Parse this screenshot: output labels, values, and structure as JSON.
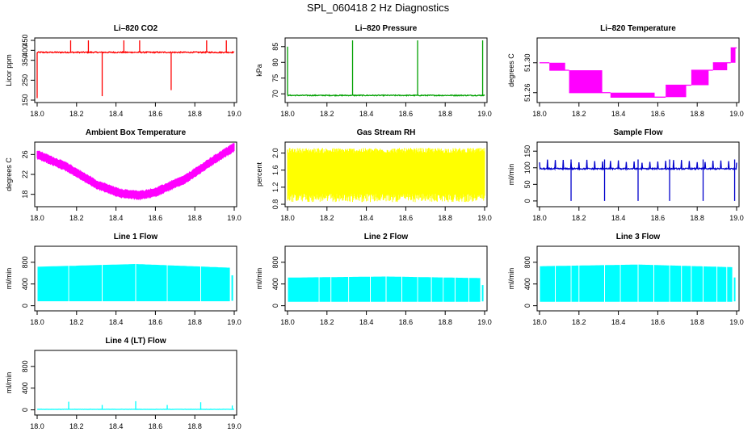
{
  "figure_title": "SPL_060418  2 Hz Diagnostics",
  "chart_data": [
    {
      "id": "co2",
      "type": "line",
      "title": "Li–820 CO2",
      "ylabel": "Licor ppm",
      "color": "#ff0000",
      "xlim": [
        18,
        19
      ],
      "ylim": [
        150,
        450
      ],
      "yticks": [
        150,
        250,
        350,
        400,
        450
      ],
      "xticks": [
        "18.0",
        "18.2",
        "18.4",
        "18.6",
        "18.8",
        "19.0"
      ],
      "series": [
        {
          "name": "CO2",
          "baseline": 390,
          "noise": 6,
          "spikes": [
            {
              "x": 18.0,
              "v": 160
            },
            {
              "x": 18.17,
              "v": 450
            },
            {
              "x": 18.26,
              "v": 450
            },
            {
              "x": 18.33,
              "v": 170
            },
            {
              "x": 18.44,
              "v": 450
            },
            {
              "x": 18.52,
              "v": 450
            },
            {
              "x": 18.68,
              "v": 200
            },
            {
              "x": 18.86,
              "v": 450
            },
            {
              "x": 18.96,
              "v": 450
            }
          ]
        }
      ]
    },
    {
      "id": "pressure",
      "type": "line",
      "title": "Li–820 Pressure",
      "ylabel": "kPa",
      "color": "#00a000",
      "xlim": [
        18,
        19
      ],
      "ylim": [
        68,
        87
      ],
      "yticks": [
        70,
        75,
        80,
        85
      ],
      "xticks": [
        "18.0",
        "18.2",
        "18.4",
        "18.6",
        "18.8",
        "19.0"
      ],
      "series": [
        {
          "name": "Pressure",
          "baseline": 69.5,
          "noise": 0.3,
          "spikes": [
            {
              "x": 18.0,
              "v": 85
            },
            {
              "x": 18.33,
              "v": 87
            },
            {
              "x": 18.66,
              "v": 87
            },
            {
              "x": 18.99,
              "v": 87
            }
          ]
        }
      ]
    },
    {
      "id": "temp",
      "type": "line",
      "title": "Li–820 Temperature",
      "ylabel": "degrees C",
      "color": "#ff00ff",
      "xlim": [
        18,
        19
      ],
      "ylim": [
        51.25,
        51.33
      ],
      "yticks": [
        "51.26",
        "51.30"
      ],
      "xticks": [
        "18.0",
        "18.2",
        "18.4",
        "18.6",
        "18.8",
        "19.0"
      ],
      "series": [
        {
          "name": "Temperature",
          "steps": [
            [
              18.0,
              51.3
            ],
            [
              18.05,
              51.29
            ],
            [
              18.15,
              51.26
            ],
            [
              18.36,
              51.254
            ],
            [
              18.64,
              51.27
            ],
            [
              18.77,
              51.29
            ],
            [
              18.88,
              51.3
            ],
            [
              18.97,
              51.32
            ]
          ]
        }
      ]
    },
    {
      "id": "ambient",
      "type": "line",
      "title": "Ambient Box Temperature",
      "ylabel": "degrees C",
      "color": "#ff00ff",
      "xlim": [
        18,
        19
      ],
      "ylim": [
        16,
        28
      ],
      "yticks": [
        18,
        22,
        26
      ],
      "xticks": [
        "18.0",
        "18.2",
        "18.4",
        "18.6",
        "18.8",
        "19.0"
      ],
      "series": [
        {
          "name": "Ambient",
          "knots": [
            [
              18.0,
              26
            ],
            [
              18.15,
              23.5
            ],
            [
              18.3,
              20
            ],
            [
              18.42,
              18.2
            ],
            [
              18.52,
              17.8
            ],
            [
              18.6,
              18.4
            ],
            [
              18.75,
              21
            ],
            [
              18.9,
              25
            ],
            [
              19.0,
              27.5
            ]
          ],
          "noise": 0.6
        }
      ]
    },
    {
      "id": "rh",
      "type": "line",
      "title": "Gas Stream RH",
      "ylabel": "percent",
      "color": "#ffff00",
      "xlim": [
        18,
        19
      ],
      "ylim": [
        0.8,
        2.2
      ],
      "yticks": [
        "0.8",
        "1.2",
        "1.6",
        "2.0"
      ],
      "xticks": [
        "18.0",
        "18.2",
        "18.4",
        "18.6",
        "18.8",
        "19.0"
      ],
      "series": [
        {
          "name": "RH",
          "band": [
            1.05,
            2.0
          ],
          "outliers": 0.85
        }
      ]
    },
    {
      "id": "sflow",
      "type": "line",
      "title": "Sample Flow",
      "ylabel": "ml/min",
      "color": "#0000cc",
      "xlim": [
        18,
        19
      ],
      "ylim": [
        -10,
        170
      ],
      "yticks": [
        0,
        50,
        100,
        150
      ],
      "xticks": [
        "18.0",
        "18.2",
        "18.4",
        "18.6",
        "18.8",
        "19.0"
      ],
      "series": [
        {
          "name": "Sample Flow",
          "baseline": 97,
          "noise": 4,
          "dips": [
            18.16,
            18.33,
            18.5,
            18.66,
            18.83,
            18.99
          ],
          "dip_value": 0,
          "spike_value": 125
        }
      ]
    },
    {
      "id": "line1",
      "type": "area",
      "title": "Line 1 Flow",
      "ylabel": "ml/min",
      "color": "#00ffff",
      "xlim": [
        18,
        19
      ],
      "ylim": [
        -50,
        1050
      ],
      "yticks": [
        0,
        400,
        800
      ],
      "xticks": [
        "18.0",
        "18.2",
        "18.4",
        "18.6",
        "18.8",
        "19.0"
      ],
      "series": [
        {
          "name": "Line 1",
          "top": [
            [
              18.0,
              710
            ],
            [
              18.5,
              760
            ],
            [
              19.0,
              690
            ]
          ],
          "bottom": 90,
          "gaps": [
            18.16,
            18.33,
            18.5,
            18.66,
            18.83
          ],
          "tail": [
            18.99,
            560
          ]
        }
      ]
    },
    {
      "id": "line2",
      "type": "area",
      "title": "Line 2 Flow",
      "ylabel": "ml/min",
      "color": "#00ffff",
      "xlim": [
        18,
        19
      ],
      "ylim": [
        -50,
        1050
      ],
      "yticks": [
        0,
        400,
        800
      ],
      "xticks": [
        "18.0",
        "18.2",
        "18.4",
        "18.6",
        "18.8",
        "19.0"
      ],
      "series": [
        {
          "name": "Line 2",
          "top": [
            [
              18.0,
              510
            ],
            [
              18.5,
              530
            ],
            [
              19.0,
              500
            ]
          ],
          "bottom": 80,
          "gaps": [
            18.16,
            18.22,
            18.31,
            18.42,
            18.5,
            18.58,
            18.66,
            18.73,
            18.79,
            18.85,
            18.92
          ],
          "tail": [
            18.99,
            380
          ]
        }
      ]
    },
    {
      "id": "line3",
      "type": "area",
      "title": "Line 3 Flow",
      "ylabel": "ml/min",
      "color": "#00ffff",
      "xlim": [
        18,
        19
      ],
      "ylim": [
        -50,
        1050
      ],
      "yticks": [
        0,
        400,
        800
      ],
      "xticks": [
        "18.0",
        "18.2",
        "18.4",
        "18.6",
        "18.8",
        "19.0"
      ],
      "series": [
        {
          "name": "Line 3",
          "top": [
            [
              18.0,
              720
            ],
            [
              18.5,
              750
            ],
            [
              19.0,
              700
            ]
          ],
          "bottom": 80,
          "gaps": [
            18.08,
            18.16,
            18.2,
            18.33,
            18.41,
            18.5,
            18.58,
            18.66,
            18.72,
            18.77,
            18.83,
            18.9,
            18.95
          ],
          "tail": [
            18.99,
            520
          ]
        }
      ]
    },
    {
      "id": "line4",
      "type": "line",
      "title": "Line 4 (LT) Flow",
      "ylabel": "ml/min",
      "color": "#00ffff",
      "xlim": [
        18,
        19
      ],
      "ylim": [
        -50,
        1050
      ],
      "yticks": [
        0,
        400,
        800
      ],
      "xticks": [
        "18.0",
        "18.2",
        "18.4",
        "18.6",
        "18.8",
        "19.0"
      ],
      "series": [
        {
          "name": "Line 4",
          "baseline": 10,
          "noise": 4,
          "spikes": [
            {
              "x": 18.16,
              "v": 150
            },
            {
              "x": 18.33,
              "v": 90
            },
            {
              "x": 18.5,
              "v": 160
            },
            {
              "x": 18.66,
              "v": 90
            },
            {
              "x": 18.83,
              "v": 140
            },
            {
              "x": 18.99,
              "v": 80
            }
          ]
        }
      ]
    }
  ]
}
